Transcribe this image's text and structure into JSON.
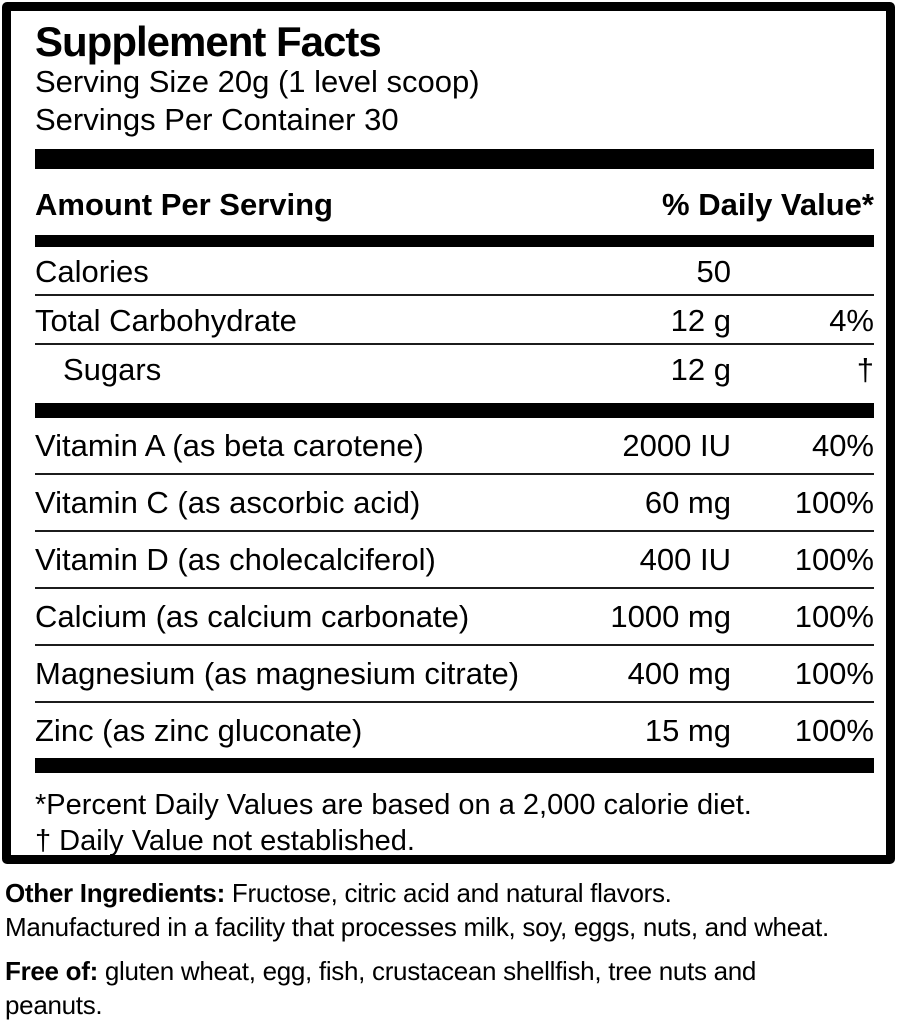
{
  "panel": {
    "title": "Supplement Facts",
    "serving_size": "Serving Size 20g (1 level scoop)",
    "servings_per_container": "Servings Per Container 30",
    "columns": {
      "amount_header": "Amount Per Serving",
      "dv_header": "% Daily Value*"
    },
    "macro_rows": [
      {
        "name": "Calories",
        "amount": "50",
        "dv": ""
      },
      {
        "name": "Total Carbohydrate",
        "amount": "12 g",
        "dv": "4%"
      },
      {
        "name": "Sugars",
        "amount": "12 g",
        "dv": "†"
      }
    ],
    "micro_rows": [
      {
        "name": "Vitamin A (as beta carotene)",
        "amount": "2000 IU",
        "dv": "40%"
      },
      {
        "name": "Vitamin C (as ascorbic acid)",
        "amount": "60 mg",
        "dv": "100%"
      },
      {
        "name": "Vitamin D (as cholecalciferol)",
        "amount": "400 IU",
        "dv": "100%"
      },
      {
        "name": "Calcium (as calcium carbonate)",
        "amount": "1000 mg",
        "dv": "100%"
      },
      {
        "name": "Magnesium (as magnesium citrate)",
        "amount": "400 mg",
        "dv": "100%"
      },
      {
        "name": "Zinc (as zinc gluconate)",
        "amount": "15 mg",
        "dv": "100%"
      }
    ],
    "footnotes": [
      "*Percent Daily Values are based on a 2,000 calorie diet.",
      "† Daily Value not established."
    ]
  },
  "other_ingredients": {
    "label": "Other Ingredients:",
    "text": " Fructose, citric acid and natural flavors.",
    "line2": "Manufactured in a facility that processes milk, soy, eggs, nuts, and wheat."
  },
  "free_of": {
    "label": "Free of:",
    "text": " gluten wheat, egg, fish, crustacean shellfish, tree nuts and peanuts."
  },
  "colors": {
    "ink": "#000000",
    "paper": "#ffffff"
  }
}
